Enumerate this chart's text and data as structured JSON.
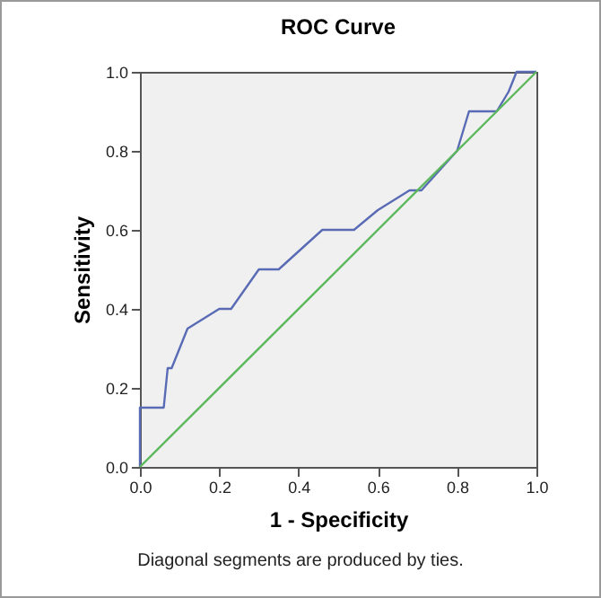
{
  "chart_data": {
    "type": "line",
    "title": "ROC Curve",
    "xlabel": "1 - Specificity",
    "ylabel": "Sensitivity",
    "annotations": [
      "Diagonal segments are produced by ties."
    ],
    "series": [
      {
        "color": "#5a6bb5",
        "x": [
          0,
          0,
          0.06,
          0.07,
          0.08,
          0.12,
          0.2,
          0.23,
          0.3,
          0.35,
          0.46,
          0.54,
          0.6,
          0.68,
          0.71,
          0.8,
          0.83,
          0.9,
          0.93,
          0.95,
          1
        ],
        "values": [
          0,
          0.15,
          0.15,
          0.25,
          0.25,
          0.35,
          0.4,
          0.4,
          0.5,
          0.5,
          0.6,
          0.6,
          0.65,
          0.7,
          0.7,
          0.8,
          0.9,
          0.9,
          0.95,
          1,
          1
        ]
      },
      {
        "type": "line",
        "color": "#5cb85c",
        "x": [
          0,
          1
        ],
        "values": [
          0,
          1
        ]
      }
    ],
    "xlim": [
      0,
      1
    ],
    "ylim": [
      0,
      1
    ],
    "xticks": [
      {
        "value": 0,
        "label": "0.0"
      },
      {
        "value": 0.2,
        "label": "0.2"
      },
      {
        "value": 0.4,
        "label": "0.4"
      },
      {
        "value": 0.6,
        "label": "0.6"
      },
      {
        "value": 0.8,
        "label": "0.8"
      },
      {
        "value": 1,
        "label": "1.0"
      }
    ],
    "yticks": [
      {
        "value": 0,
        "label": "0.0"
      },
      {
        "value": 0.2,
        "label": "0.2"
      },
      {
        "value": 0.4,
        "label": "0.4"
      },
      {
        "value": 0.6,
        "label": "0.6"
      },
      {
        "value": 0.8,
        "label": "0.8"
      },
      {
        "value": 1,
        "label": "1.0"
      }
    ],
    "grid": false
  }
}
